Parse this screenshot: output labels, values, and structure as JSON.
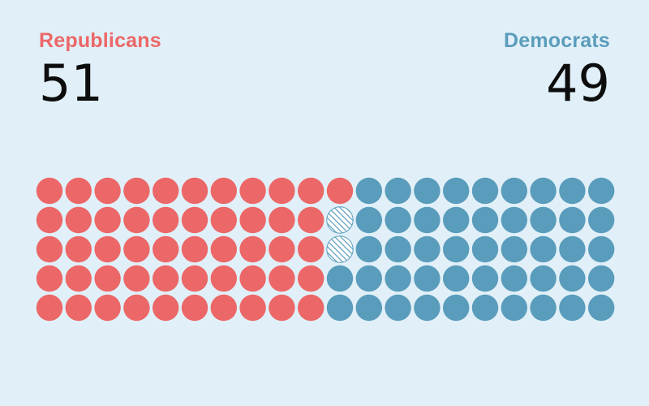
{
  "republicans": {
    "label": "Republicans",
    "count": "51",
    "color": "#ec6767"
  },
  "democrats": {
    "label": "Democrats",
    "count": "49",
    "color": "#5a9cbb"
  },
  "chart_data": {
    "type": "waffle",
    "rows": 5,
    "columns": 20,
    "order": "column-major, left to right",
    "series": [
      {
        "name": "Republicans",
        "value": 51,
        "color": "#ec6767"
      },
      {
        "name": "Democrats",
        "value": 49,
        "color": "#5a9cbb"
      }
    ],
    "hatched_seats": [
      {
        "column": 11,
        "row": 2,
        "party": "Democrats"
      },
      {
        "column": 11,
        "row": 3,
        "party": "Democrats"
      }
    ]
  }
}
